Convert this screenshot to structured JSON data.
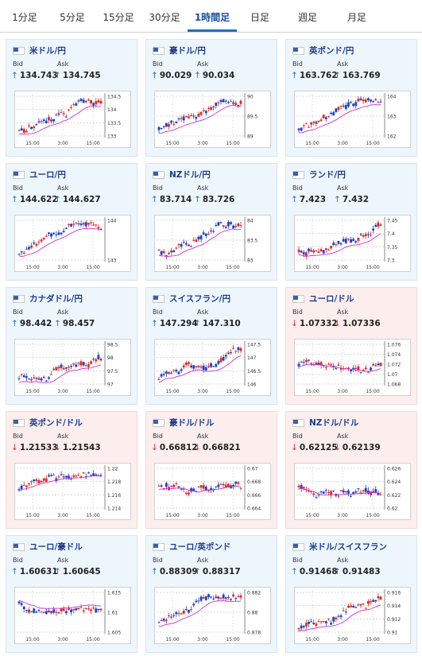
{
  "tabs": [
    "1分足",
    "5分足",
    "15分足",
    "30分足",
    "1時間足",
    "日足",
    "週足",
    "月足"
  ],
  "active_tab": 4,
  "colors": {
    "up": "#2b6fc4",
    "down": "#d23333",
    "ma": "#cc33cc",
    "candle_up": "#e02828",
    "candle_down": "#2040c0"
  },
  "labels": {
    "bid": "Bid",
    "ask": "Ask"
  },
  "cards": [
    {
      "name": "米ドル/円",
      "dir": "up",
      "bid": "134.743",
      "ask": "134.745",
      "xticks": [
        "15:00",
        "3:00",
        "15:00"
      ],
      "yticks": [
        "134.5",
        "134",
        "133.5",
        "133"
      ],
      "trend": "up"
    },
    {
      "name": "豪ドル/円",
      "dir": "up",
      "bid": "90.029",
      "ask": "90.034",
      "xticks": [
        "15:00",
        "3:00",
        "15:00"
      ],
      "yticks": [
        "90",
        "89.5",
        "89"
      ],
      "trend": "up"
    },
    {
      "name": "英ポンド/円",
      "dir": "up",
      "bid": "163.762",
      "ask": "163.769",
      "xticks": [
        "15:00",
        "3:00",
        "15:00"
      ],
      "yticks": [
        "164",
        "163",
        "162"
      ],
      "trend": "up"
    },
    {
      "name": "ユーロ/円",
      "dir": "up",
      "bid": "144.622",
      "ask": "144.627",
      "xticks": [
        "15:00",
        "3:00",
        "15:00"
      ],
      "yticks": [
        "144",
        "143"
      ],
      "trend": "up"
    },
    {
      "name": "NZドル/円",
      "dir": "up",
      "bid": "83.714",
      "ask": "83.726",
      "xticks": [
        "15:00",
        "3:00",
        "15:00"
      ],
      "yticks": [
        "84",
        "83.5",
        "83"
      ],
      "trend": "up"
    },
    {
      "name": "ランド/円",
      "dir": "up",
      "bid": "7.423",
      "ask": "7.432",
      "xticks": [
        "15:00",
        "3:00",
        "15:00"
      ],
      "yticks": [
        "7.45",
        "7.4",
        "7.35",
        "7.3"
      ],
      "trend": "up"
    },
    {
      "name": "カナダドル/円",
      "dir": "up",
      "bid": "98.442",
      "ask": "98.457",
      "xticks": [
        "15:00",
        "3:00",
        "15:00"
      ],
      "yticks": [
        "98.5",
        "98",
        "97.5",
        "97"
      ],
      "trend": "up"
    },
    {
      "name": "スイスフラン/円",
      "dir": "up",
      "bid": "147.294",
      "ask": "147.310",
      "xticks": [
        "15:00",
        "3:00",
        "15:00"
      ],
      "yticks": [
        "147.5",
        "147",
        "146.5",
        "146"
      ],
      "trend": "up"
    },
    {
      "name": "ユーロ/ドル",
      "dir": "down",
      "bid": "1.07332",
      "ask": "1.07336",
      "xticks": [
        "15:00",
        "3:00",
        "15:00"
      ],
      "yticks": [
        "1.076",
        "1.074",
        "1.072",
        "1.07",
        "1.068"
      ],
      "trend": "flat"
    },
    {
      "name": "英ポンド/ドル",
      "dir": "down",
      "bid": "1.21533",
      "ask": "1.21543",
      "xticks": [
        "15:00",
        "3:00",
        "15:00"
      ],
      "yticks": [
        "1.22",
        "1.218",
        "1.216",
        "1.214"
      ],
      "trend": "flat"
    },
    {
      "name": "豪ドル/ドル",
      "dir": "down",
      "bid": "0.66812",
      "ask": "0.66821",
      "xticks": [
        "15:00",
        "3:00",
        "15:00"
      ],
      "yticks": [
        "0.67",
        "0.668",
        "0.666",
        "0.664"
      ],
      "trend": "flat"
    },
    {
      "name": "NZドル/ドル",
      "dir": "down",
      "bid": "0.62125",
      "ask": "0.62139",
      "xticks": [
        "15:00",
        "3:00",
        "15:00"
      ],
      "yticks": [
        "0.626",
        "0.624",
        "0.622",
        "0.62"
      ],
      "trend": "flat"
    },
    {
      "name": "ユーロ/豪ドル",
      "dir": "up",
      "bid": "1.60631",
      "ask": "1.60645",
      "xticks": [
        "15:00",
        "3:00",
        "15:00"
      ],
      "yticks": [
        "1.615",
        "1.61",
        "1.605"
      ],
      "trend": "down"
    },
    {
      "name": "ユーロ/英ポンド",
      "dir": "up",
      "bid": "0.88309",
      "ask": "0.88317",
      "xticks": [
        "15:00",
        "3:00",
        "15:00"
      ],
      "yticks": [
        "0.882",
        "0.88",
        "0.878"
      ],
      "trend": "up"
    },
    {
      "name": "米ドル/スイスフラン",
      "dir": "up",
      "bid": "0.91468",
      "ask": "0.91483",
      "xticks": [
        "15:00",
        "3:00",
        "15:00"
      ],
      "yticks": [
        "0.916",
        "0.914",
        "0.912",
        "0.91"
      ],
      "trend": "up"
    }
  ]
}
